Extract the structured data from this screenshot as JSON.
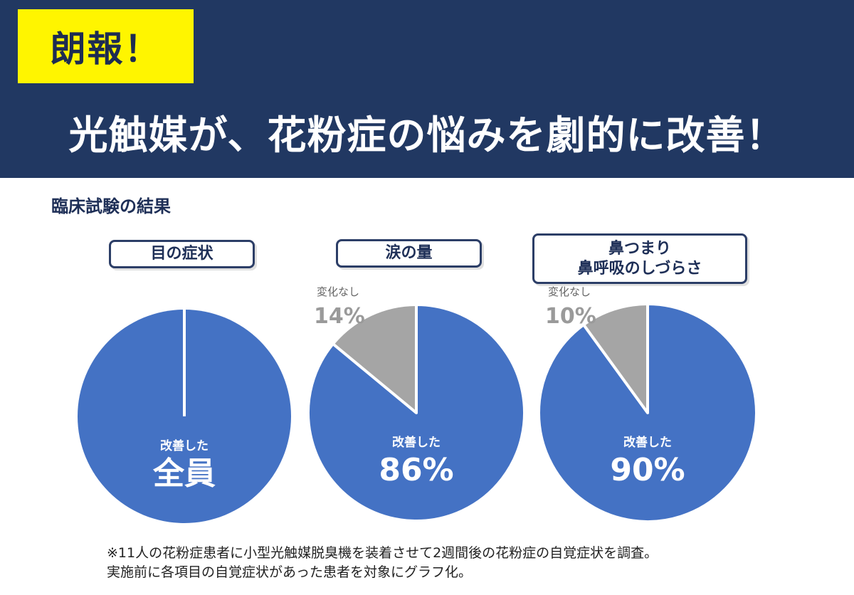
{
  "header": {
    "badge": "朗報！",
    "headline": "光触媒が、花粉症の悩みを劇的に改善！"
  },
  "section_title": "臨床試験の結果",
  "colors": {
    "improved": "#4472c4",
    "no_change": "#a5a5a5",
    "header_bg": "#213862",
    "badge_bg": "#fff500"
  },
  "chart_data": [
    {
      "type": "pie",
      "category_lines": [
        "目の症状"
      ],
      "slices": [
        {
          "name": "改善した",
          "value": 100,
          "display": "全員"
        }
      ]
    },
    {
      "type": "pie",
      "category_lines": [
        "涙の量"
      ],
      "slices": [
        {
          "name": "改善した",
          "value": 86,
          "display": "86%"
        },
        {
          "name": "変化なし",
          "value": 14,
          "display": "14%"
        }
      ]
    },
    {
      "type": "pie",
      "category_lines": [
        "鼻つまり",
        "鼻呼吸のしづらさ"
      ],
      "slices": [
        {
          "name": "改善した",
          "value": 90,
          "display": "90%"
        },
        {
          "name": "変化なし",
          "value": 10,
          "display": "10%"
        }
      ]
    }
  ],
  "footnote": [
    "※11人の花粉症患者に小型光触媒脱臭機を装着させて2週間後の花粉症の自覚症状を調査。",
    "実施前に各項目の自覚症状があった患者を対象にグラフ化。"
  ]
}
